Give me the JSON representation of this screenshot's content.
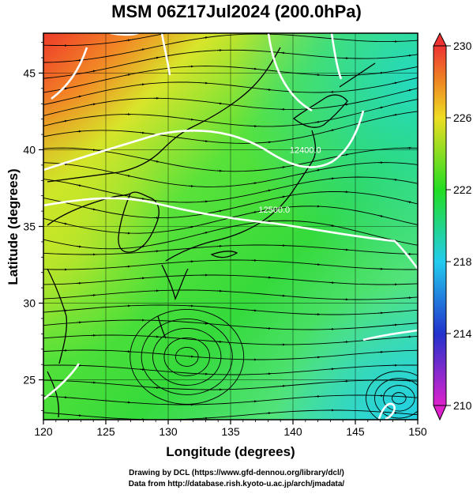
{
  "title": "MSM 06Z17Jul2024 (200.0hPa)",
  "x_axis": {
    "label": "Longitude (degrees)",
    "range": [
      120,
      150
    ],
    "ticks": [
      "120",
      "125",
      "130",
      "135",
      "140",
      "145",
      "150"
    ]
  },
  "y_axis": {
    "label": "Latitude  (degrees)",
    "range": [
      22.4,
      47.6
    ],
    "ticks": [
      "25",
      "30",
      "35",
      "40",
      "45"
    ]
  },
  "colorbar": {
    "range": [
      210,
      230
    ],
    "ticks": [
      "210",
      "214",
      "218",
      "222",
      "226",
      "230"
    ],
    "colors": [
      "#cc22cc",
      "#2222cc",
      "#22ccee",
      "#22dd22",
      "#eeee22",
      "#ee7722",
      "#ee3333"
    ]
  },
  "contour_labels": [
    {
      "text": "12400.0",
      "lon": 141.0,
      "lat": 39.8
    },
    {
      "text": "12500.0",
      "lon": 138.5,
      "lat": 35.9
    }
  ],
  "credits": {
    "line1": "Drawing by DCL (https://www.gfd-dennou.org/library/dcl/)",
    "line2": "Data from http://database.rish.kyoto-u.ac.jp/arch/jmadata/"
  }
}
